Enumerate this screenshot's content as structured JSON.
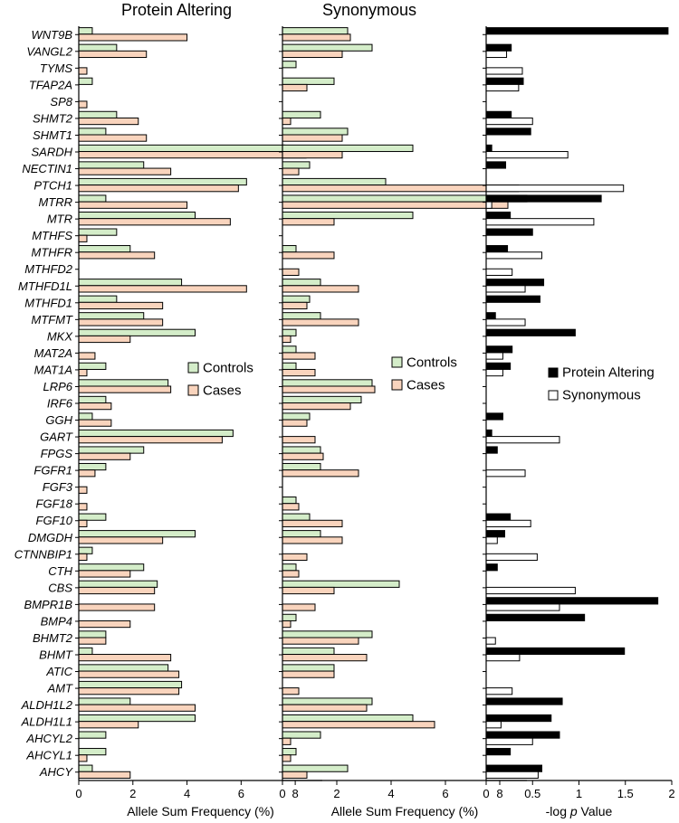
{
  "chart_data": [
    {
      "type": "bar",
      "orientation": "horizontal",
      "title": "Protein Altering",
      "xlabel": "Allele Sum Frequency (%)",
      "xlim": [
        0,
        9
      ],
      "xticks": [
        "0",
        "2",
        "4",
        "6",
        "8"
      ],
      "categories": [
        "WNT9B",
        "VANGL2",
        "TYMS",
        "TFAP2A",
        "SP8",
        "SHMT2",
        "SHMT1",
        "SARDH",
        "NECTIN1",
        "PTCH1",
        "MTRR",
        "MTR",
        "MTHFS",
        "MTHFR",
        "MTHFD2",
        "MTHFD1L",
        "MTHFD1",
        "MTFMT",
        "MKX",
        "MAT2A",
        "MAT1A",
        "LRP6",
        "IRF6",
        "GGH",
        "GART",
        "FPGS",
        "FGFR1",
        "FGF3",
        "FGF18",
        "FGF10",
        "DMGDH",
        "CTNNBIP1",
        "CTH",
        "CBS",
        "BMPR1B",
        "BMP4",
        "BHMT2",
        "BHMT",
        "ATIC",
        "AMT",
        "ALDH1L2",
        "ALDH1L1",
        "AHCYL2",
        "AHCYL1",
        "AHCY"
      ],
      "legend": {
        "position": "right",
        "items": [
          "Controls",
          "Cases"
        ]
      },
      "series": [
        {
          "name": "Controls",
          "color": "#d4edc9",
          "values": [
            0.5,
            1.4,
            0,
            0.5,
            0,
            1.4,
            1.0,
            7.6,
            2.4,
            6.2,
            1.0,
            4.3,
            1.4,
            1.9,
            0,
            3.8,
            1.4,
            2.4,
            4.3,
            0,
            1.0,
            3.3,
            1.0,
            0.5,
            5.7,
            2.4,
            1.0,
            0,
            0,
            1.0,
            4.3,
            0.5,
            2.4,
            2.9,
            0,
            0,
            1.0,
            0.5,
            3.3,
            3.8,
            1.9,
            4.3,
            1.0,
            1.0,
            0.5
          ]
        },
        {
          "name": "Cases",
          "color": "#f9d4bd",
          "values": [
            4.0,
            2.5,
            0.3,
            0,
            0.3,
            2.2,
            2.5,
            8.4,
            3.4,
            5.9,
            4.0,
            5.6,
            0.3,
            2.8,
            0,
            6.2,
            3.1,
            3.1,
            1.9,
            0.6,
            0.3,
            3.4,
            1.2,
            1.2,
            5.3,
            1.9,
            0.6,
            0.3,
            0.3,
            0.3,
            3.1,
            0.3,
            1.9,
            2.8,
            2.8,
            1.9,
            1.0,
            3.4,
            3.7,
            3.7,
            4.3,
            2.2,
            0,
            0.3,
            1.9
          ]
        }
      ]
    },
    {
      "type": "bar",
      "orientation": "horizontal",
      "title": "Synonymous",
      "xlabel": "Allele Sum Frequency (%)",
      "xlim": [
        0,
        9
      ],
      "xticks": [
        "0",
        "2",
        "4",
        "6",
        "8"
      ],
      "categories": [
        "WNT9B",
        "VANGL2",
        "TYMS",
        "TFAP2A",
        "SP8",
        "SHMT2",
        "SHMT1",
        "SARDH",
        "NECTIN1",
        "PTCH1",
        "MTRR",
        "MTR",
        "MTHFS",
        "MTHFR",
        "MTHFD2",
        "MTHFD1L",
        "MTHFD1",
        "MTFMT",
        "MKX",
        "MAT2A",
        "MAT1A",
        "LRP6",
        "IRF6",
        "GGH",
        "GART",
        "FPGS",
        "FGFR1",
        "FGF3",
        "FGF18",
        "FGF10",
        "DMGDH",
        "CTNNBIP1",
        "CTH",
        "CBS",
        "BMPR1B",
        "BMP4",
        "BHMT2",
        "BHMT",
        "ATIC",
        "AMT",
        "ALDH1L2",
        "ALDH1L1",
        "AHCYL2",
        "AHCYL1",
        "AHCY"
      ],
      "legend": {
        "position": "right",
        "items": [
          "Controls",
          "Cases"
        ]
      },
      "series": [
        {
          "name": "Controls",
          "color": "#d4edc9",
          "values": [
            2.4,
            3.3,
            0.5,
            1.9,
            0,
            1.4,
            2.4,
            4.8,
            1.0,
            3.8,
            9.0,
            4.8,
            0,
            0.5,
            0,
            1.4,
            1.0,
            1.4,
            0.5,
            0.5,
            0.5,
            3.3,
            2.9,
            1.0,
            0,
            1.4,
            1.4,
            0,
            0.5,
            1.0,
            1.4,
            0,
            0.5,
            4.3,
            0,
            0.5,
            3.3,
            1.9,
            1.9,
            0,
            3.3,
            4.8,
            1.4,
            0.5,
            2.4
          ]
        },
        {
          "name": "Cases",
          "color": "#f9d4bd",
          "values": [
            2.5,
            2.2,
            0,
            0.9,
            0,
            0.3,
            2.2,
            2.2,
            0.6,
            8.7,
            8.3,
            1.9,
            0,
            1.9,
            0.6,
            2.8,
            0.9,
            2.8,
            0.3,
            1.2,
            1.2,
            3.4,
            2.5,
            0.9,
            1.2,
            1.5,
            2.8,
            0,
            0.6,
            2.2,
            2.2,
            0.9,
            0.6,
            1.9,
            1.2,
            0.3,
            2.8,
            3.1,
            1.9,
            0.6,
            3.1,
            5.6,
            0.3,
            0.3,
            0.9
          ]
        }
      ]
    },
    {
      "type": "bar",
      "orientation": "horizontal",
      "xlabel": "-log p Value",
      "xlim": [
        0,
        2
      ],
      "xticks": [
        "0",
        "0.5",
        "1",
        "1.5",
        "2"
      ],
      "categories": [
        "WNT9B",
        "VANGL2",
        "TYMS",
        "TFAP2A",
        "SP8",
        "SHMT2",
        "SHMT1",
        "SARDH",
        "NECTIN1",
        "PTCH1",
        "MTRR",
        "MTR",
        "MTHFS",
        "MTHFR",
        "MTHFD2",
        "MTHFD1L",
        "MTHFD1",
        "MTFMT",
        "MKX",
        "MAT2A",
        "MAT1A",
        "LRP6",
        "IRF6",
        "GGH",
        "GART",
        "FPGS",
        "FGFR1",
        "FGF3",
        "FGF18",
        "FGF10",
        "DMGDH",
        "CTNNBIP1",
        "CTH",
        "CBS",
        "BMPR1B",
        "BMP4",
        "BHMT2",
        "BHMT",
        "ATIC",
        "AMT",
        "ALDH1L2",
        "ALDH1L1",
        "AHCYL2",
        "AHCYL1",
        "AHCY"
      ],
      "legend": {
        "position": "right",
        "items": [
          "Protein Altering",
          "Synonymous"
        ]
      },
      "series": [
        {
          "name": "Protein Altering",
          "color": "#000000",
          "values": [
            1.96,
            0.27,
            0,
            0.4,
            0,
            0.27,
            0.48,
            0.06,
            0.21,
            0,
            1.24,
            0.26,
            0.5,
            0.23,
            0,
            0.62,
            0.58,
            0.1,
            0.96,
            0.28,
            0.26,
            0,
            0,
            0.18,
            0.06,
            0.12,
            0,
            0,
            0,
            0.26,
            0.2,
            0,
            0.12,
            0,
            1.85,
            1.06,
            0,
            1.49,
            0,
            0,
            0.82,
            0.7,
            0.79,
            0.26,
            0.6
          ]
        },
        {
          "name": "Synonymous",
          "color": "#ffffff",
          "values": [
            0,
            0.22,
            0.39,
            0.35,
            0,
            0.5,
            0,
            0.88,
            0,
            1.48,
            0.06,
            1.16,
            0,
            0.6,
            0.28,
            0.42,
            0,
            0.42,
            0,
            0.18,
            0.18,
            0,
            0,
            0,
            0.79,
            0,
            0.42,
            0,
            0,
            0.48,
            0.12,
            0.55,
            0,
            0.96,
            0.79,
            0,
            0.1,
            0.36,
            0,
            0.28,
            0,
            0.16,
            0.5,
            0,
            0.56
          ]
        }
      ]
    }
  ],
  "labels": {
    "control_label": "Controls",
    "case_label": "Cases",
    "protein_altering_label": "Protein Altering",
    "synonymous_label": "Synonymous"
  }
}
